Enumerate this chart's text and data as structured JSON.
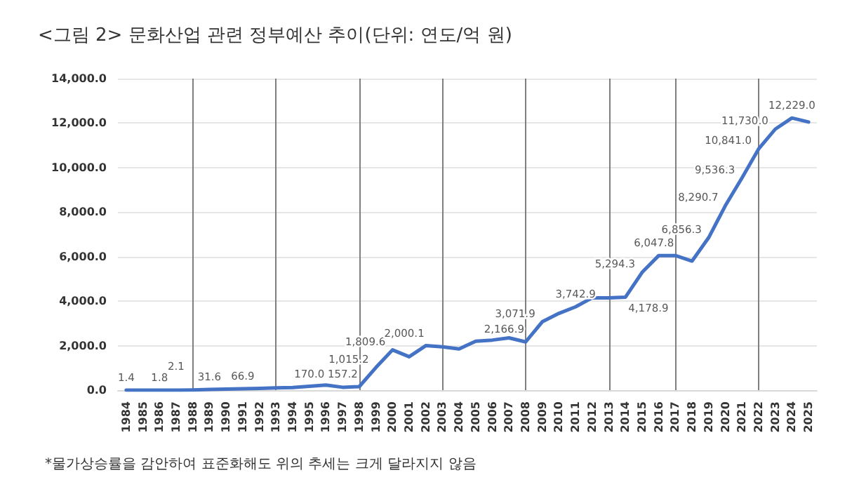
{
  "chart_data": {
    "type": "line",
    "title": "<그림 2> 문화산업 관련 정부예산 추이(단위: 연도/억 원)",
    "categories": [
      "1984",
      "1985",
      "1986",
      "1987",
      "1988",
      "1989",
      "1990",
      "1991",
      "1992",
      "1993",
      "1994",
      "1995",
      "1996",
      "1997",
      "1998",
      "1999",
      "2000",
      "2001",
      "2002",
      "2003",
      "2004",
      "2005",
      "2006",
      "2007",
      "2008",
      "2009",
      "2010",
      "2011",
      "2012",
      "2013",
      "2014",
      "2015",
      "2016",
      "2017",
      "2018",
      "2019",
      "2020",
      "2021",
      "2022",
      "2023",
      "2024",
      "2025"
    ],
    "series": [
      {
        "color": "#4472c4",
        "values": [
          1.4,
          0,
          1.8,
          2.1,
          10,
          31.6,
          50,
          66.9,
          80,
          100,
          120,
          170.0,
          230,
          130,
          157.2,
          1015.2,
          1809.6,
          1500,
          2000.1,
          1950,
          1850,
          2200,
          2250,
          2350,
          2166.9,
          3071.9,
          3450,
          3742.9,
          4150,
          4150,
          4178.9,
          5294.3,
          6050,
          6047.8,
          5800,
          6856.3,
          8290.7,
          9536.3,
          10841.0,
          11730.0,
          12229.0,
          12050
        ],
        "value_labels": [
          "1.4",
          null,
          "1.8",
          "2.1",
          null,
          "31.6",
          null,
          "66.9",
          null,
          null,
          null,
          "170.0",
          null,
          null,
          "157.2",
          "1,015.2",
          "1,809.6",
          null,
          "2,000.1",
          null,
          null,
          null,
          null,
          null,
          "2,166.9",
          "3,071.9",
          null,
          "3,742.9",
          null,
          null,
          "4,178.9",
          "5,294.3",
          null,
          "6,047.8",
          null,
          "6,856.3",
          "8,290.7",
          "9,536.3",
          "10,841.0",
          "11,730.0",
          "12,229.0",
          null
        ]
      }
    ],
    "ylim": [
      0,
      14000
    ],
    "yticks": [
      {
        "value": 0,
        "label": "0.0"
      },
      {
        "value": 2000,
        "label": "2,000.0"
      },
      {
        "value": 4000,
        "label": "4,000.0"
      },
      {
        "value": 6000,
        "label": "6,000.0"
      },
      {
        "value": 8000,
        "label": "8,000.0"
      },
      {
        "value": 10000,
        "label": "10,000.0"
      },
      {
        "value": 12000,
        "label": "12,000.0"
      },
      {
        "value": 14000,
        "label": "14,000.0"
      }
    ],
    "grid": "y",
    "marker": "none",
    "line_style": "solid",
    "ref_lines": [
      {
        "axis": "x",
        "value": "1988",
        "color": "#7f7f7f"
      },
      {
        "axis": "x",
        "value": "1993",
        "color": "#7f7f7f"
      },
      {
        "axis": "x",
        "value": "1998",
        "color": "#7f7f7f"
      },
      {
        "axis": "x",
        "value": "2003",
        "color": "#7f7f7f"
      },
      {
        "axis": "x",
        "value": "2008",
        "color": "#7f7f7f"
      },
      {
        "axis": "x",
        "value": "2013",
        "color": "#7f7f7f"
      },
      {
        "axis": "x",
        "value": "2017",
        "color": "#7f7f7f"
      },
      {
        "axis": "x",
        "value": "2022",
        "color": "#7f7f7f"
      }
    ],
    "annotations": [
      "*물가상승률을 감안하여 표준화해도 위의 추세는 크게 달라지지 않음"
    ]
  }
}
